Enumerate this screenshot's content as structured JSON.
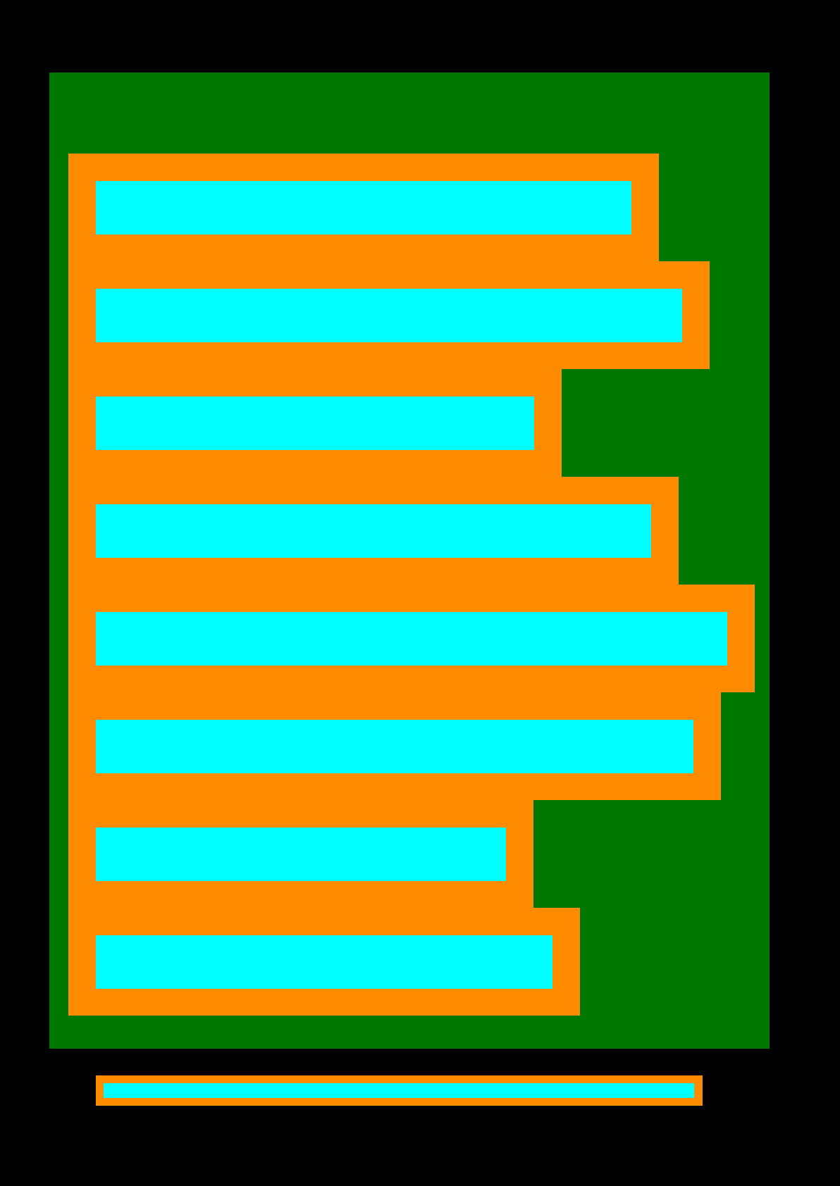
{
  "colors": {
    "background": "#000000",
    "panel": "#007700",
    "frame": "#ff8c00",
    "fill": "#00ffff"
  },
  "items": [
    {
      "level": 0.8187
    },
    {
      "level": 0.8969
    },
    {
      "level": 0.6698
    },
    {
      "level": 0.8487
    },
    {
      "level": 0.9655
    },
    {
      "level": 0.9138
    },
    {
      "level": 0.6268
    },
    {
      "level": 0.6978
    }
  ]
}
